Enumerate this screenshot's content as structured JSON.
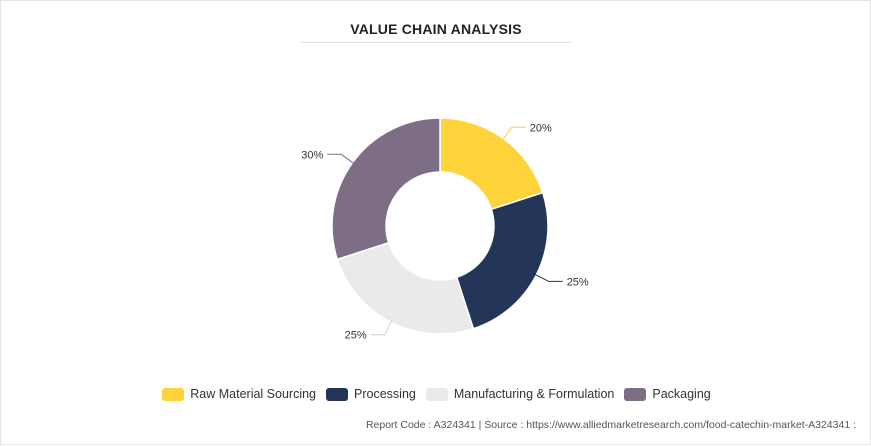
{
  "chart_data": {
    "type": "pie",
    "title": "VALUE CHAIN ANALYSIS",
    "categories": [
      "Raw Material Sourcing",
      "Processing",
      "Manufacturing & Formulation",
      "Packaging"
    ],
    "values": [
      20,
      25,
      25,
      30
    ],
    "labels": [
      "20%",
      "25%",
      "25%",
      "30%"
    ],
    "colors": [
      "#FFD43B",
      "#233558",
      "#EAEAEA",
      "#7D6E85"
    ],
    "donut": true,
    "legend_position": "bottom"
  },
  "footer": {
    "text": "Report Code : A324341  |  Source : https://www.alliedmarketresearch.com/food-catechin-market-A324341 :"
  }
}
